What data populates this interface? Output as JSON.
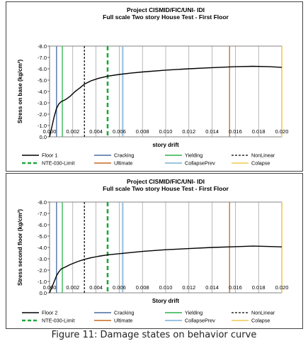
{
  "caption": "Figure 11: Damage states on behavior curve",
  "colors": {
    "curve": "#000000",
    "cracking": "#4a6aa0",
    "yielding": "#2bb24c",
    "nonlinear": "#000000",
    "nte": "#1fa83a",
    "ultimate": "#c8691e",
    "collapseprev": "#9cc3e0",
    "colapse": "#f0c850",
    "grid": "#888888"
  },
  "legend_common": {
    "cracking": "Cracking",
    "yielding": "Yielding",
    "nonlinear": "NonLinear",
    "nte": "NTE-030-Limit",
    "ultimate": "Ultimate",
    "collapseprev": "CollapsePrev",
    "colapse": "Colapse"
  },
  "chart_data": [
    {
      "type": "line",
      "title": "Project CISMID/FIC/UNI- IDI",
      "subtitle": "Full scale  Two story House Test - First Floor",
      "xlabel": "story drift",
      "ylabel": "Stress on base (kg/cm²)",
      "xlim": [
        0,
        0.02
      ],
      "ylim": [
        0,
        -8
      ],
      "x_ticks": [
        "0.000",
        "0.002",
        "0.004",
        "0.006",
        "0.008",
        "0.010",
        "0.012",
        "0.014",
        "0.016",
        "0.018",
        "0.020"
      ],
      "y_ticks": [
        "0.0",
        "-1.0",
        "-2.0",
        "-3.0",
        "-4.0",
        "-5.0",
        "-6.0",
        "-7.0",
        "-8.0"
      ],
      "grid": "vertical",
      "legend_position": "bottom",
      "series": [
        {
          "name": "Floor 1",
          "x": [
            0.0,
            0.0002,
            0.0004,
            0.0006,
            0.0008,
            0.001,
            0.0014,
            0.0018,
            0.0022,
            0.0026,
            0.003,
            0.0036,
            0.0042,
            0.005,
            0.006,
            0.007,
            0.008,
            0.01,
            0.012,
            0.014,
            0.016,
            0.0175,
            0.019,
            0.02
          ],
          "y": [
            0.0,
            -0.9,
            -1.8,
            -2.5,
            -2.9,
            -3.1,
            -3.3,
            -3.6,
            -4.0,
            -4.3,
            -4.65,
            -4.95,
            -5.15,
            -5.35,
            -5.5,
            -5.62,
            -5.72,
            -5.88,
            -6.0,
            -6.1,
            -6.18,
            -6.22,
            -6.18,
            -6.12
          ]
        }
      ],
      "thresholds": [
        {
          "name": "Cracking",
          "x": 0.0006
        },
        {
          "name": "Yielding",
          "x": 0.0011
        },
        {
          "name": "NonLinear",
          "x": 0.003
        },
        {
          "name": "NTE-030-Limit",
          "x": 0.005
        },
        {
          "name": "Ultimate",
          "x": 0.0155
        },
        {
          "name": "CollapsePrev",
          "x": 0.0063
        },
        {
          "name": "Colapse",
          "x": 0.02
        }
      ]
    },
    {
      "type": "line",
      "title": "Project CISMID/FIC/UNI- IDI",
      "subtitle": "Full scale  Two story House Test - First Floor",
      "xlabel": "Story drift",
      "ylabel": "Stress second floor (kg/cm²)",
      "xlim": [
        0,
        0.02
      ],
      "ylim": [
        0,
        -8
      ],
      "x_ticks": [
        "0.000",
        "0.002",
        "0.004",
        "0.006",
        "0.008",
        "0.010",
        "0.012",
        "0.014",
        "0.016",
        "0.018",
        "0.020"
      ],
      "y_ticks": [
        "0.0",
        "-1.0",
        "-2.0",
        "-3.0",
        "-4.0",
        "-5.0",
        "-6.0",
        "-7.0",
        "-8.0"
      ],
      "grid": "vertical",
      "legend_position": "bottom",
      "series": [
        {
          "name": "Floor 2",
          "x": [
            0.0,
            0.0002,
            0.0004,
            0.0006,
            0.0008,
            0.001,
            0.0014,
            0.0018,
            0.0024,
            0.003,
            0.0036,
            0.0042,
            0.005,
            0.006,
            0.007,
            0.008,
            0.01,
            0.012,
            0.014,
            0.016,
            0.0175,
            0.019,
            0.02
          ],
          "y": [
            0.0,
            -0.5,
            -1.0,
            -1.5,
            -1.85,
            -2.1,
            -2.3,
            -2.5,
            -2.75,
            -2.95,
            -3.1,
            -3.22,
            -3.35,
            -3.45,
            -3.55,
            -3.65,
            -3.8,
            -3.9,
            -4.0,
            -4.07,
            -4.12,
            -4.08,
            -4.05
          ]
        }
      ],
      "thresholds": [
        {
          "name": "Cracking",
          "x": 0.0006
        },
        {
          "name": "Yielding",
          "x": 0.0011
        },
        {
          "name": "NonLinear",
          "x": 0.003
        },
        {
          "name": "NTE-030-Limit",
          "x": 0.005
        },
        {
          "name": "Ultimate",
          "x": 0.0155
        },
        {
          "name": "CollapsePrev",
          "x": 0.0063
        },
        {
          "name": "Colapse",
          "x": 0.02
        }
      ]
    }
  ]
}
